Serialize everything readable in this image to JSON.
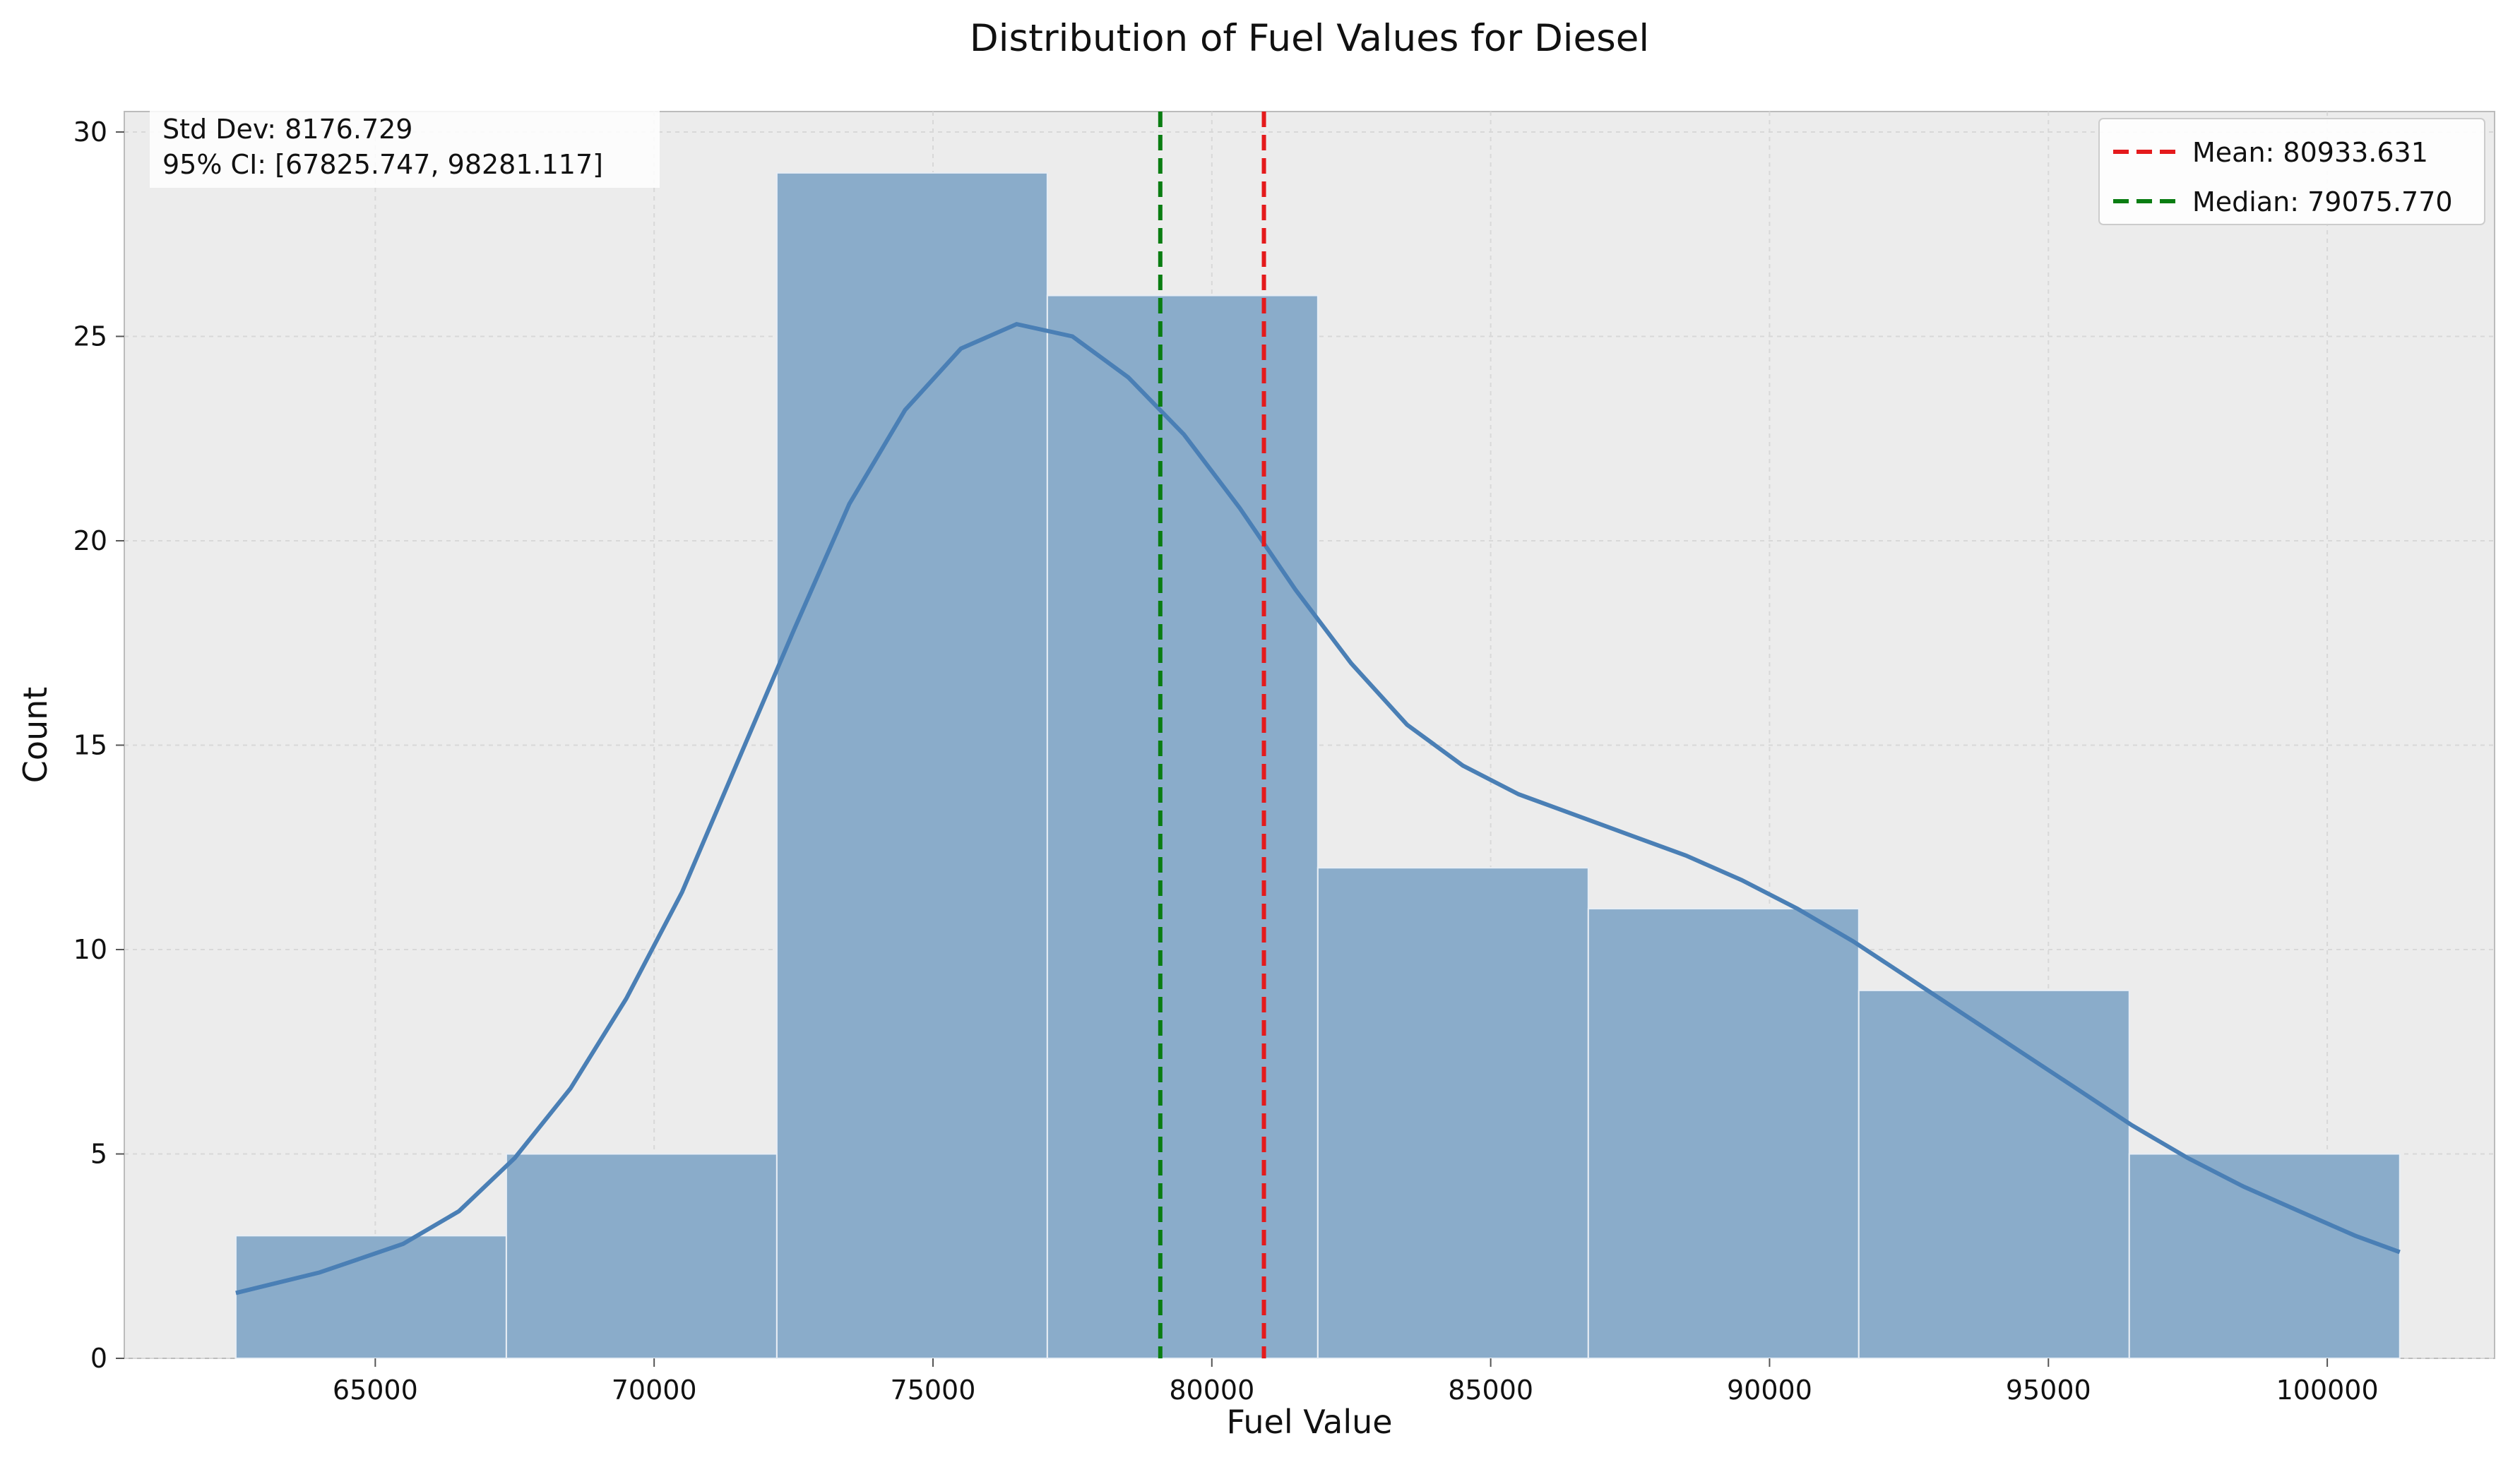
{
  "chart_data": {
    "type": "histogram",
    "title": "Distribution of Fuel Values for Diesel",
    "xlabel": "Fuel Value",
    "ylabel": "Count",
    "xlim": [
      60500,
      103000
    ],
    "ylim": [
      0,
      30.5
    ],
    "xticks": [
      65000,
      70000,
      75000,
      80000,
      85000,
      90000,
      95000,
      100000
    ],
    "yticks": [
      0,
      5,
      10,
      15,
      20,
      25,
      30
    ],
    "grid": true,
    "bins": [
      {
        "start": 62500,
        "end": 67350,
        "count": 3
      },
      {
        "start": 67350,
        "end": 72200,
        "count": 5
      },
      {
        "start": 72200,
        "end": 77050,
        "count": 29
      },
      {
        "start": 77050,
        "end": 81900,
        "count": 26
      },
      {
        "start": 81900,
        "end": 86750,
        "count": 12
      },
      {
        "start": 86750,
        "end": 91600,
        "count": 11
      },
      {
        "start": 91600,
        "end": 96450,
        "count": 9
      },
      {
        "start": 96450,
        "end": 101300,
        "count": 5
      }
    ],
    "kde": {
      "x": [
        62500,
        64000,
        65500,
        66500,
        67500,
        68500,
        69500,
        70500,
        71500,
        72500,
        73500,
        74500,
        75500,
        76500,
        77500,
        78500,
        79500,
        80500,
        81500,
        82500,
        83500,
        84500,
        85500,
        86500,
        87500,
        88500,
        89500,
        90500,
        91500,
        92500,
        93500,
        94500,
        95500,
        96500,
        97500,
        98500,
        99500,
        100500,
        101300
      ],
      "y": [
        1.6,
        2.1,
        2.8,
        3.6,
        4.9,
        6.6,
        8.8,
        11.4,
        14.6,
        17.8,
        20.9,
        23.2,
        24.7,
        25.3,
        25.0,
        24.0,
        22.6,
        20.8,
        18.8,
        17.0,
        15.5,
        14.5,
        13.8,
        13.3,
        12.8,
        12.3,
        11.7,
        11.0,
        10.2,
        9.3,
        8.4,
        7.5,
        6.6,
        5.7,
        4.9,
        4.2,
        3.6,
        3.0,
        2.6
      ]
    },
    "mean": 80933.631,
    "median": 79075.77,
    "colors": {
      "bar_fill": "#8aacca",
      "bar_edge": "#e8eef5",
      "kde_line": "#4a7fb5",
      "mean_line": "#e41a1c",
      "median_line": "#0a7d12",
      "plot_bg": "#ececec",
      "grid": "#d8d8d8"
    },
    "stats_box": {
      "lines": [
        "Std Dev: 8176.729",
        "95% CI: [67825.747, 98281.117]"
      ]
    },
    "legend": {
      "placement": "top-right",
      "entries": [
        {
          "label": "Mean: 80933.631",
          "color": "#e41a1c"
        },
        {
          "label": "Median: 79075.770",
          "color": "#0a7d12"
        }
      ]
    }
  }
}
